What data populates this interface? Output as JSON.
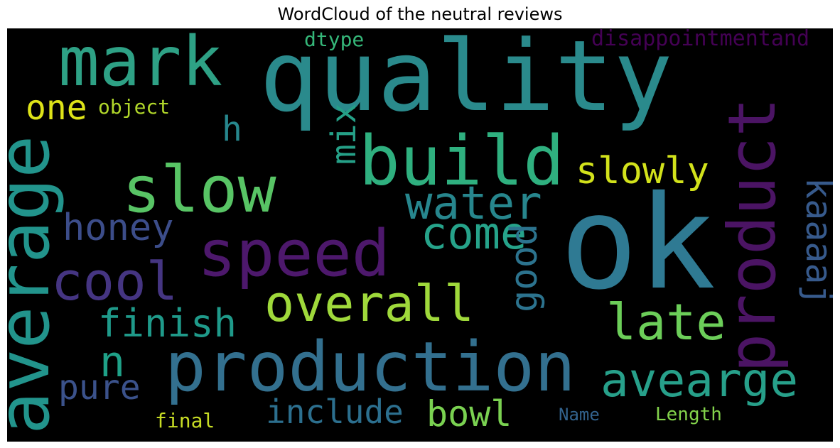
{
  "title": "WordCloud of the neutral reviews",
  "background": "#000000",
  "words": [
    {
      "text": "quality",
      "color": "#2a8a8c"
    },
    {
      "text": "ok",
      "color": "#2f7a93"
    },
    {
      "text": "mark",
      "color": "#2ea185"
    },
    {
      "text": "slow",
      "color": "#58c465"
    },
    {
      "text": "build",
      "color": "#2fb07f"
    },
    {
      "text": "product",
      "color": "#4b1464"
    },
    {
      "text": "average",
      "color": "#22948c"
    },
    {
      "text": "speed",
      "color": "#4d186c"
    },
    {
      "text": "production",
      "color": "#33708f"
    },
    {
      "text": "water",
      "color": "#27868d"
    },
    {
      "text": "come",
      "color": "#26a38a"
    },
    {
      "text": "overall",
      "color": "#9fd93b"
    },
    {
      "text": "late",
      "color": "#6cce59"
    },
    {
      "text": "avearge",
      "color": "#27a08a"
    },
    {
      "text": "cool",
      "color": "#453582"
    },
    {
      "text": "honey",
      "color": "#3c4d8a"
    },
    {
      "text": "finish",
      "color": "#1f9a8a"
    },
    {
      "text": "slowly",
      "color": "#d2e21b"
    },
    {
      "text": "one",
      "color": "#dde318"
    },
    {
      "text": "object",
      "color": "#b0d62a"
    },
    {
      "text": "mix",
      "color": "#25a087"
    },
    {
      "text": "h",
      "color": "#27878d"
    },
    {
      "text": "n",
      "color": "#1fa188"
    },
    {
      "text": "good",
      "color": "#2c738e"
    },
    {
      "text": "kaaaaj",
      "color": "#375a8c"
    },
    {
      "text": "pure",
      "color": "#3b528b"
    },
    {
      "text": "include",
      "color": "#2c6f8e"
    },
    {
      "text": "bowl",
      "color": "#7ad151"
    },
    {
      "text": "final",
      "color": "#c7dc25"
    },
    {
      "text": "Name",
      "color": "#32628d"
    },
    {
      "text": "Length",
      "color": "#83d34b"
    },
    {
      "text": "dtype",
      "color": "#35b779"
    },
    {
      "text": "disappointmentand",
      "color": "#440154"
    }
  ]
}
